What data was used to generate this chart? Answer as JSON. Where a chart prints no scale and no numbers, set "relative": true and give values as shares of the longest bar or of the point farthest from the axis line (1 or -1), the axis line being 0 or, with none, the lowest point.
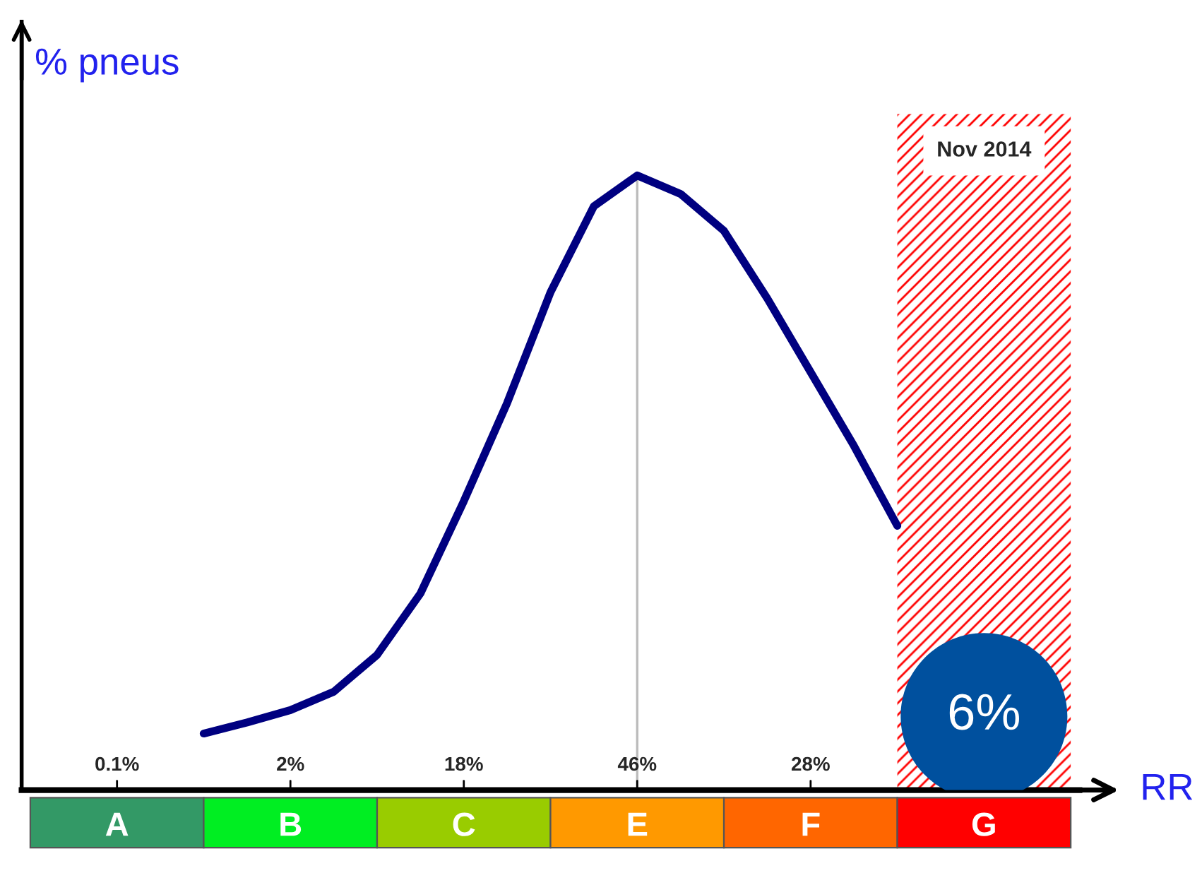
{
  "chart_data": {
    "type": "line",
    "relative": true,
    "ylabel": "% pneus",
    "xlabel": "RR",
    "categories": [
      "A",
      null,
      null,
      null,
      "B",
      null,
      null,
      null,
      "C",
      null,
      null,
      null,
      "E",
      null,
      null,
      null,
      "F",
      null,
      null,
      null,
      "G"
    ],
    "colors": [
      "#339966",
      "#00ee22",
      "#99cc00",
      "#ff9900",
      "#ff6600",
      "#ff0000"
    ],
    "series": [
      {
        "color": "#000080",
        "values": [
          null,
          null,
          0.092,
          0.11,
          0.13,
          0.16,
          0.22,
          0.32,
          0.47,
          0.63,
          0.81,
          0.95,
          1.0,
          0.97,
          0.91,
          0.8,
          0.68,
          0.56,
          0.43,
          null,
          null
        ]
      }
    ],
    "ref_lines": [
      {
        "axis": "x",
        "value": "E",
        "color": "#bbbbbb"
      }
    ],
    "annotations": [
      "0.1%",
      "2%",
      "18%",
      "46%",
      "28%",
      "6%",
      "Nov 2014"
    ],
    "grid": false,
    "marker": "none",
    "line_style": "solid"
  }
}
